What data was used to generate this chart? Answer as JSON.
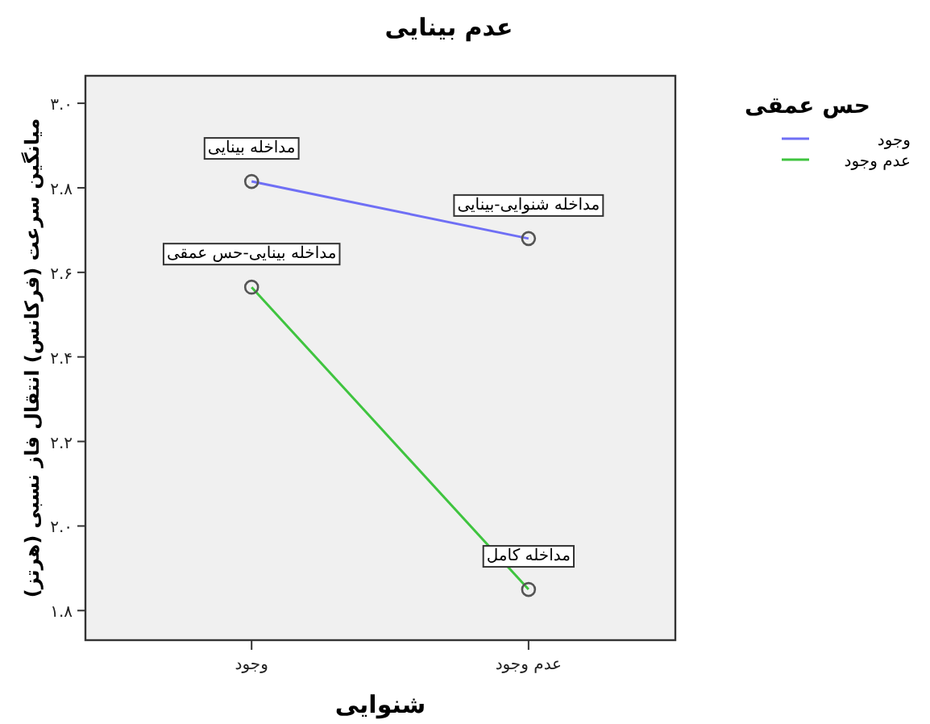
{
  "chart_data": {
    "type": "line",
    "title": "عدم بینایی",
    "xlabel": "شنوایی",
    "ylabel": "میانگین سرعت (فرکانس) انتقال فاز نسبی (هرتز)",
    "legend_title": "حس عمقی",
    "categories": [
      "وجود",
      "عدم وجود"
    ],
    "series": [
      {
        "name": "وجود",
        "color": "#6f6ff5",
        "values": [
          2.815,
          2.68
        ]
      },
      {
        "name": "عدم وجود",
        "color": "#3fc43f",
        "values": [
          2.565,
          1.85
        ]
      }
    ],
    "ylim": [
      1.73,
      3.065
    ],
    "yticks": [
      {
        "value": 1.8,
        "label": "۱.۸"
      },
      {
        "value": 2.0,
        "label": "۲.۰"
      },
      {
        "value": 2.2,
        "label": "۲.۲"
      },
      {
        "value": 2.4,
        "label": "۲.۴"
      },
      {
        "value": 2.6,
        "label": "۲.۶"
      },
      {
        "value": 2.8,
        "label": "۲.۸"
      },
      {
        "value": 3.0,
        "label": "۳.۰"
      }
    ],
    "marker": "circle",
    "legend": "right",
    "annotations": [
      {
        "text": "مداخله بینایی",
        "x": "وجود",
        "y": 2.815
      },
      {
        "text": "مداخله شنوایی-بینایی",
        "x": "عدم وجود",
        "y": 2.68
      },
      {
        "text": "مداخله بینایی-حس عمقی",
        "x": "وجود",
        "y": 2.565
      },
      {
        "text": "مداخله کامل",
        "x": "عدم وجود",
        "y": 1.85
      }
    ]
  }
}
